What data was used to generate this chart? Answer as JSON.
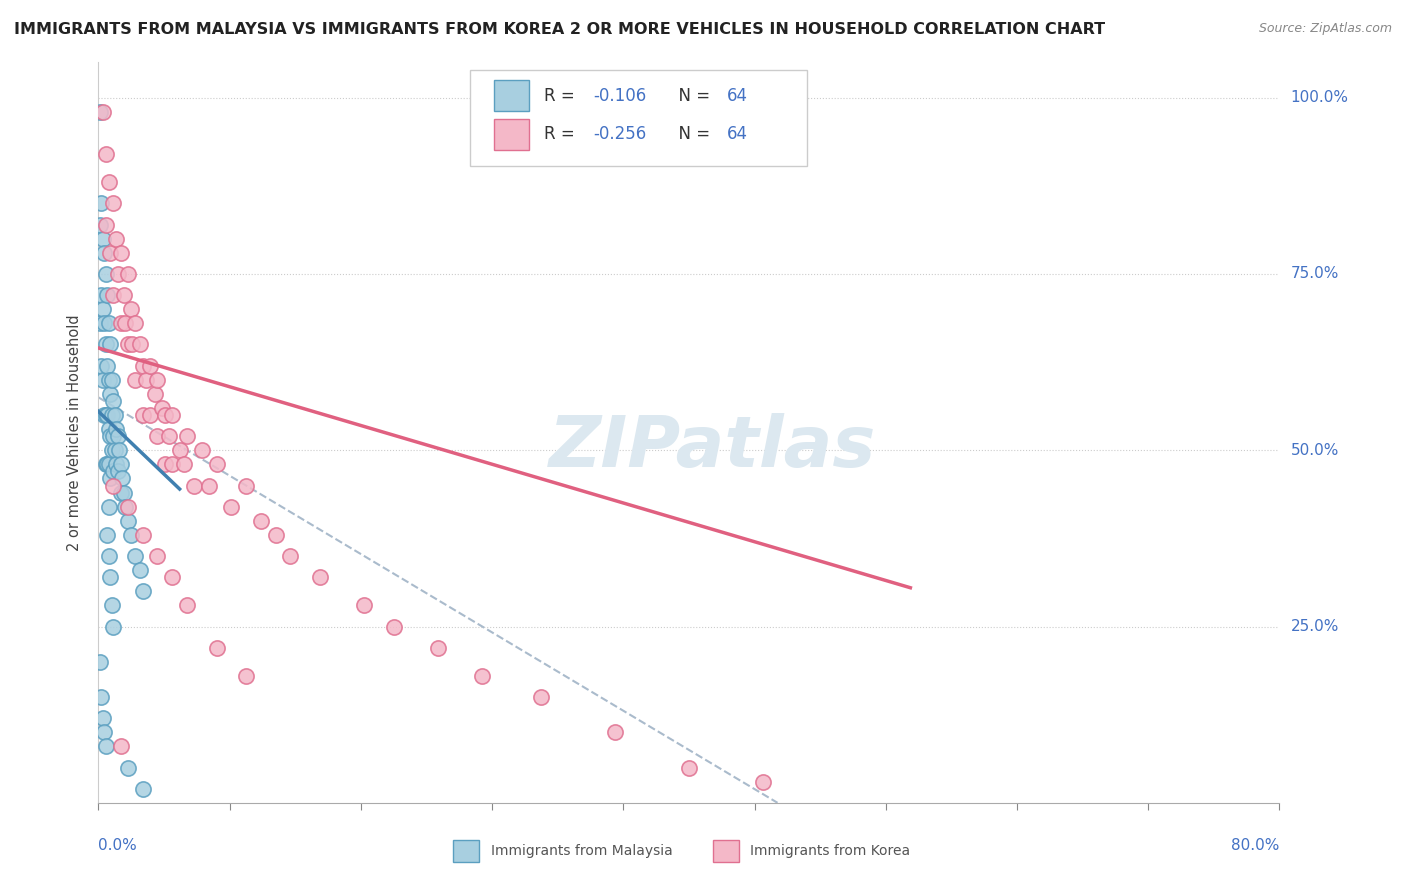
{
  "title": "IMMIGRANTS FROM MALAYSIA VS IMMIGRANTS FROM KOREA 2 OR MORE VEHICLES IN HOUSEHOLD CORRELATION CHART",
  "source": "Source: ZipAtlas.com",
  "xmin": 0.0,
  "xmax": 0.8,
  "ymin": 0.0,
  "ymax": 1.05,
  "legend1_R": "-0.106",
  "legend1_N": "64",
  "legend2_R": "-0.256",
  "legend2_N": "64",
  "blue_color": "#a8cfe0",
  "pink_color": "#f4b8c8",
  "blue_edge_color": "#5b9fc0",
  "pink_edge_color": "#e07090",
  "blue_line_color": "#4080b0",
  "pink_line_color": "#e06080",
  "dashed_line_color": "#aabbcc",
  "watermark_color": "#dce8f0",
  "legend_label1": "Immigrants from Malaysia",
  "legend_label2": "Immigrants from Korea",
  "blue_scatter_x": [
    0.001,
    0.001,
    0.001,
    0.002,
    0.002,
    0.002,
    0.003,
    0.003,
    0.003,
    0.004,
    0.004,
    0.004,
    0.005,
    0.005,
    0.005,
    0.005,
    0.006,
    0.006,
    0.006,
    0.006,
    0.007,
    0.007,
    0.007,
    0.007,
    0.007,
    0.008,
    0.008,
    0.008,
    0.008,
    0.009,
    0.009,
    0.009,
    0.01,
    0.01,
    0.01,
    0.011,
    0.011,
    0.012,
    0.012,
    0.013,
    0.013,
    0.014,
    0.015,
    0.015,
    0.016,
    0.017,
    0.018,
    0.02,
    0.022,
    0.025,
    0.028,
    0.03,
    0.001,
    0.002,
    0.003,
    0.004,
    0.005,
    0.006,
    0.007,
    0.008,
    0.009,
    0.01,
    0.02,
    0.03
  ],
  "blue_scatter_y": [
    0.98,
    0.82,
    0.68,
    0.85,
    0.72,
    0.62,
    0.8,
    0.7,
    0.6,
    0.78,
    0.68,
    0.55,
    0.75,
    0.65,
    0.55,
    0.48,
    0.72,
    0.62,
    0.55,
    0.48,
    0.68,
    0.6,
    0.53,
    0.48,
    0.42,
    0.65,
    0.58,
    0.52,
    0.46,
    0.6,
    0.55,
    0.5,
    0.57,
    0.52,
    0.47,
    0.55,
    0.5,
    0.53,
    0.48,
    0.52,
    0.47,
    0.5,
    0.48,
    0.44,
    0.46,
    0.44,
    0.42,
    0.4,
    0.38,
    0.35,
    0.33,
    0.3,
    0.2,
    0.15,
    0.12,
    0.1,
    0.08,
    0.38,
    0.35,
    0.32,
    0.28,
    0.25,
    0.05,
    0.02
  ],
  "pink_scatter_x": [
    0.003,
    0.005,
    0.005,
    0.007,
    0.008,
    0.01,
    0.01,
    0.012,
    0.013,
    0.015,
    0.015,
    0.017,
    0.018,
    0.02,
    0.02,
    0.022,
    0.023,
    0.025,
    0.025,
    0.028,
    0.03,
    0.03,
    0.032,
    0.035,
    0.035,
    0.038,
    0.04,
    0.04,
    0.043,
    0.045,
    0.045,
    0.048,
    0.05,
    0.05,
    0.055,
    0.058,
    0.06,
    0.065,
    0.07,
    0.075,
    0.08,
    0.09,
    0.1,
    0.11,
    0.12,
    0.13,
    0.15,
    0.18,
    0.2,
    0.23,
    0.26,
    0.3,
    0.35,
    0.01,
    0.02,
    0.03,
    0.04,
    0.05,
    0.06,
    0.08,
    0.1,
    0.4,
    0.45,
    0.015
  ],
  "pink_scatter_y": [
    0.98,
    0.92,
    0.82,
    0.88,
    0.78,
    0.85,
    0.72,
    0.8,
    0.75,
    0.78,
    0.68,
    0.72,
    0.68,
    0.75,
    0.65,
    0.7,
    0.65,
    0.68,
    0.6,
    0.65,
    0.62,
    0.55,
    0.6,
    0.62,
    0.55,
    0.58,
    0.6,
    0.52,
    0.56,
    0.55,
    0.48,
    0.52,
    0.55,
    0.48,
    0.5,
    0.48,
    0.52,
    0.45,
    0.5,
    0.45,
    0.48,
    0.42,
    0.45,
    0.4,
    0.38,
    0.35,
    0.32,
    0.28,
    0.25,
    0.22,
    0.18,
    0.15,
    0.1,
    0.45,
    0.42,
    0.38,
    0.35,
    0.32,
    0.28,
    0.22,
    0.18,
    0.05,
    0.03,
    0.08
  ],
  "blue_trend_x": [
    0.0,
    0.055
  ],
  "blue_trend_y": [
    0.555,
    0.445
  ],
  "pink_trend_x": [
    0.0,
    0.55
  ],
  "pink_trend_y": [
    0.645,
    0.305
  ],
  "dashed_trend_x": [
    0.0,
    0.46
  ],
  "dashed_trend_y": [
    0.575,
    0.0
  ],
  "yticks": [
    0.25,
    0.5,
    0.75,
    1.0
  ],
  "ylabel_labels": [
    "25.0%",
    "50.0%",
    "75.0%",
    "100.0%"
  ],
  "y_axis_label": "2 or more Vehicles in Household"
}
